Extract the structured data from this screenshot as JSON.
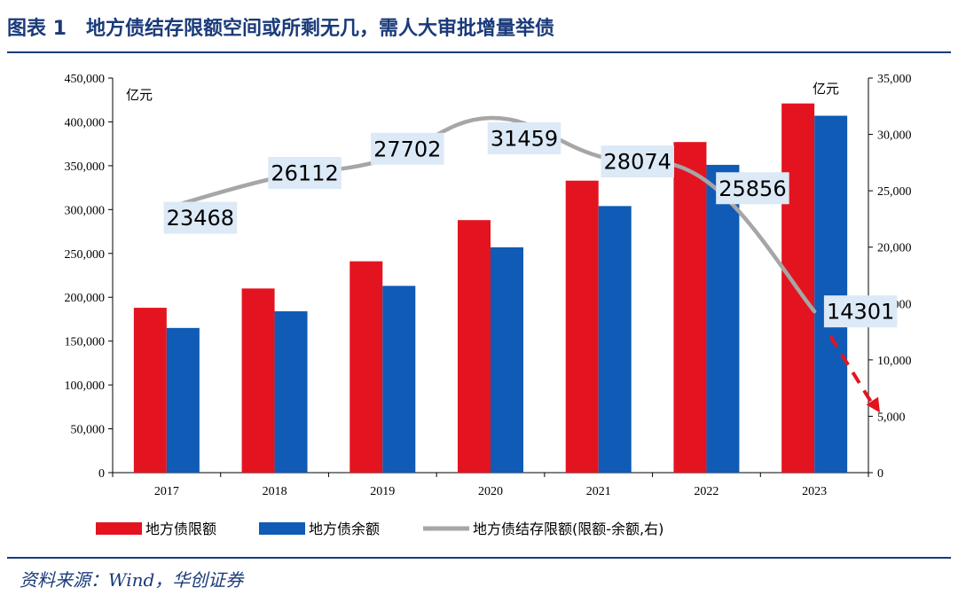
{
  "header": {
    "title": "图表 1　地方债结存限额空间或所剩无几，需人大审批增量举债"
  },
  "footer": {
    "source": "资料来源：Wind，华创证券"
  },
  "chart_data": {
    "type": "bar",
    "categories": [
      "2017",
      "2018",
      "2019",
      "2020",
      "2021",
      "2022",
      "2023"
    ],
    "series": [
      {
        "name": "地方债限额",
        "type": "bar",
        "axis": "left",
        "color": "#e3141f",
        "values": [
          188000,
          210000,
          241000,
          288000,
          333000,
          377000,
          421000
        ]
      },
      {
        "name": "地方债余额",
        "type": "bar",
        "axis": "left",
        "color": "#0f5bb5",
        "values": [
          165000,
          184000,
          213000,
          257000,
          304000,
          351000,
          407000
        ]
      },
      {
        "name": "地方债结存限额(限额-余额,右)",
        "type": "line",
        "axis": "right",
        "color": "#a6a6a6",
        "values": [
          23468,
          26112,
          27702,
          31459,
          28074,
          25856,
          14301
        ]
      }
    ],
    "data_labels": [
      "23468",
      "26112",
      "27702",
      "31459",
      "28074",
      "25856",
      "14301"
    ],
    "left_axis": {
      "unit": "亿元",
      "ylim": [
        0,
        450000
      ],
      "ticks": [
        "0",
        "50,000",
        "100,000",
        "150,000",
        "200,000",
        "250,000",
        "300,000",
        "350,000",
        "400,000",
        "450,000"
      ]
    },
    "right_axis": {
      "unit": "亿元",
      "ylim": [
        0,
        35000
      ],
      "ticks": [
        "0",
        "5,000",
        "10,000",
        "15,000",
        "20,000",
        "25,000",
        "30,000",
        "35,000"
      ]
    },
    "trend_arrow": {
      "color": "#e3141f",
      "from": 14301,
      "to": 5000
    },
    "legend_position": "bottom",
    "grid": false
  }
}
